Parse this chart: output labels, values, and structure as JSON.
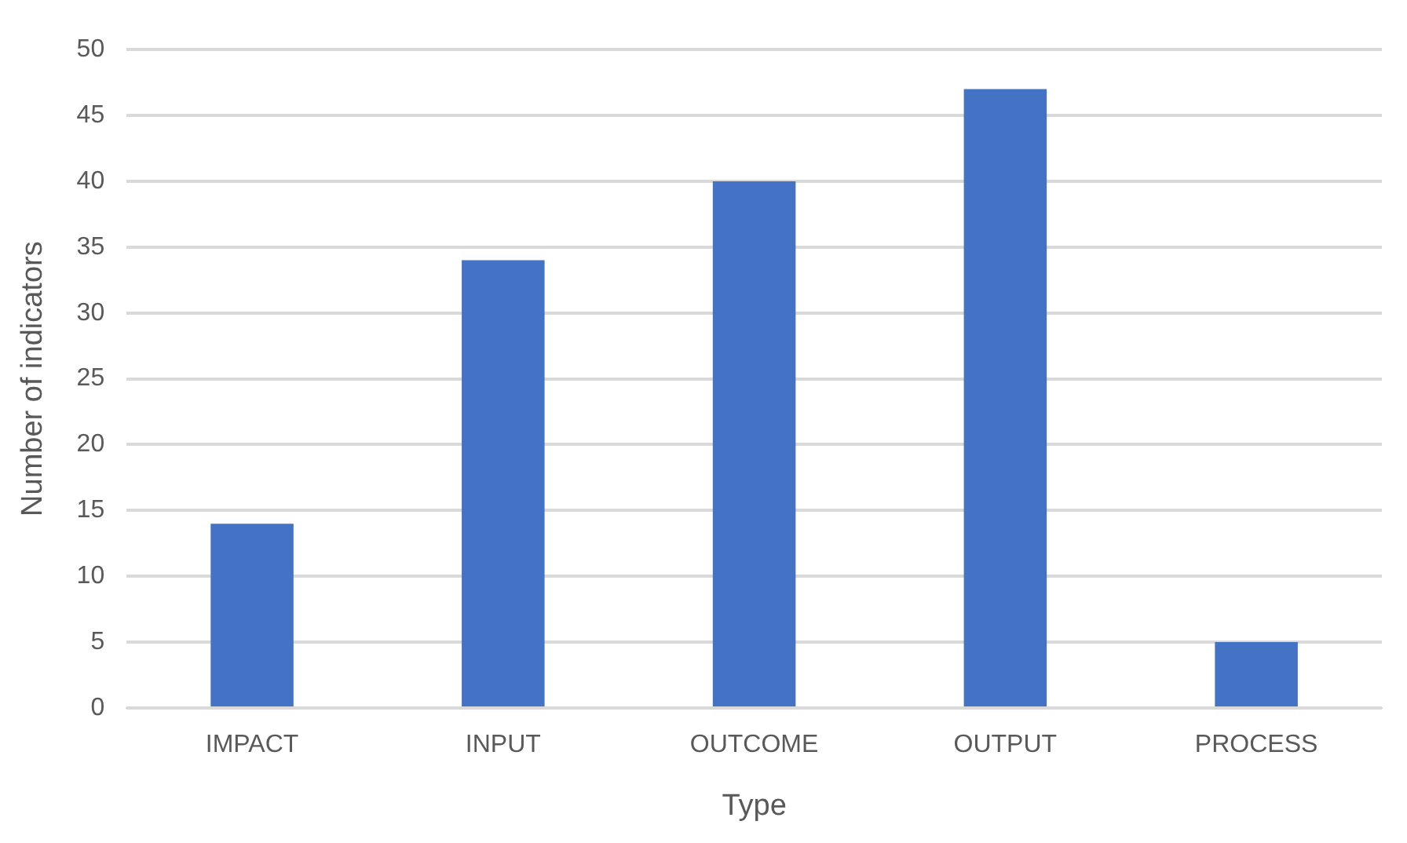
{
  "chart_data": {
    "type": "bar",
    "xlabel": "Type",
    "ylabel": "Number of indicators",
    "categories": [
      "IMPACT",
      "INPUT",
      "OUTCOME",
      "OUTPUT",
      "PROCESS"
    ],
    "values": [
      14,
      34,
      40,
      47,
      5
    ],
    "color": "#4472c4",
    "ylim": [
      0,
      50
    ],
    "yticks": [
      0,
      5,
      10,
      15,
      20,
      25,
      30,
      35,
      40,
      45,
      50
    ],
    "grid": "y",
    "legend": false
  }
}
